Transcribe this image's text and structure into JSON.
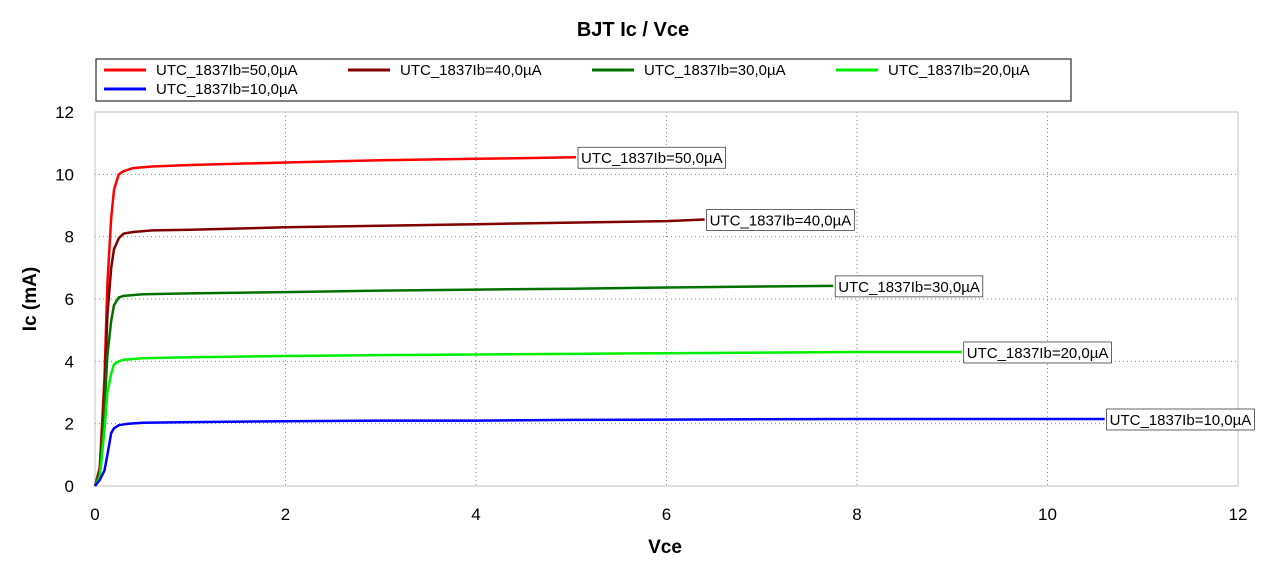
{
  "chart_data": {
    "type": "line",
    "title": "BJT Ic / Vce",
    "xlabel": "Vce",
    "ylabel": "Ic (mA)",
    "xlim": [
      0,
      12
    ],
    "ylim": [
      0,
      12
    ],
    "xticks": [
      0,
      2,
      4,
      6,
      8,
      10,
      12
    ],
    "yticks": [
      0,
      2,
      4,
      6,
      8,
      10,
      12
    ],
    "grid": true,
    "legend_position": "top",
    "series": [
      {
        "name": "UTC_1837Ib=50,0µA",
        "color": "#ff0000",
        "x": [
          0,
          0.05,
          0.1,
          0.13,
          0.17,
          0.2,
          0.25,
          0.3,
          0.4,
          0.6,
          1,
          2,
          3,
          4,
          4.5,
          5.05
        ],
        "y": [
          0,
          0.6,
          3.5,
          6.5,
          8.6,
          9.5,
          10.0,
          10.1,
          10.2,
          10.25,
          10.3,
          10.38,
          10.45,
          10.5,
          10.52,
          10.55
        ]
      },
      {
        "name": "UTC_1837Ib=40,0µA",
        "color": "#800000",
        "x": [
          0,
          0.05,
          0.1,
          0.13,
          0.17,
          0.2,
          0.25,
          0.3,
          0.4,
          0.6,
          1,
          2,
          3,
          4,
          5,
          6,
          6.4
        ],
        "y": [
          0,
          0.5,
          3.0,
          5.5,
          7.0,
          7.6,
          7.95,
          8.1,
          8.15,
          8.2,
          8.22,
          8.3,
          8.35,
          8.4,
          8.45,
          8.5,
          8.55
        ]
      },
      {
        "name": "UTC_1837Ib=30,0µA",
        "color": "#007000",
        "x": [
          0,
          0.05,
          0.1,
          0.13,
          0.17,
          0.2,
          0.25,
          0.3,
          0.5,
          1,
          2,
          3,
          4,
          5,
          6,
          7,
          7.75
        ],
        "y": [
          0,
          0.4,
          2.5,
          4.2,
          5.3,
          5.8,
          6.05,
          6.1,
          6.15,
          6.18,
          6.22,
          6.27,
          6.3,
          6.33,
          6.37,
          6.4,
          6.42
        ]
      },
      {
        "name": "UTC_1837Ib=20,0µA",
        "color": "#00ee00",
        "x": [
          0,
          0.05,
          0.1,
          0.13,
          0.17,
          0.2,
          0.25,
          0.3,
          0.5,
          1,
          2,
          3,
          4,
          5,
          6,
          7,
          8,
          9.1
        ],
        "y": [
          0,
          0.3,
          1.8,
          3.0,
          3.6,
          3.9,
          4.0,
          4.05,
          4.1,
          4.13,
          4.17,
          4.2,
          4.22,
          4.24,
          4.26,
          4.28,
          4.3,
          4.3
        ]
      },
      {
        "name": "UTC_1837Ib=10,0µA",
        "color": "#0000ff",
        "x": [
          0,
          0.05,
          0.1,
          0.13,
          0.17,
          0.2,
          0.25,
          0.35,
          0.5,
          1,
          2,
          3,
          4,
          5,
          6,
          7,
          8,
          9,
          10,
          10.6
        ],
        "y": [
          0,
          0.2,
          0.5,
          1.0,
          1.7,
          1.85,
          1.95,
          2.0,
          2.03,
          2.05,
          2.08,
          2.1,
          2.1,
          2.12,
          2.13,
          2.14,
          2.15,
          2.15,
          2.15,
          2.15
        ]
      }
    ]
  }
}
